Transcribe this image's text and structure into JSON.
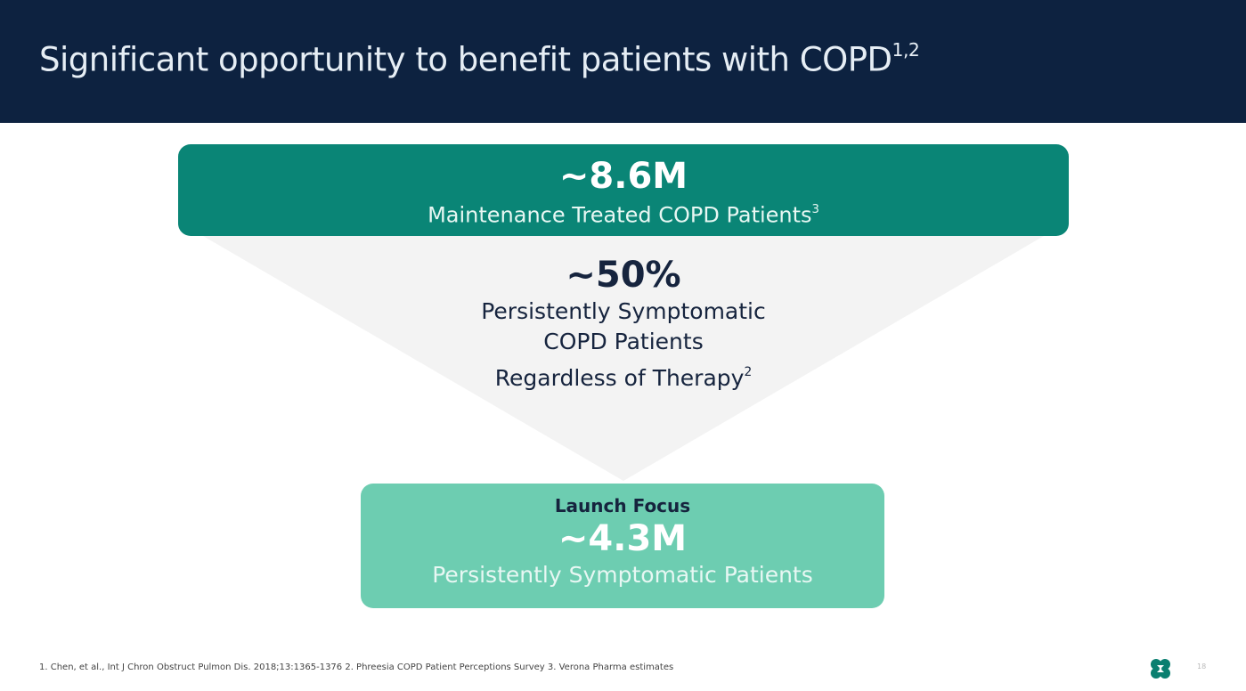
{
  "header": {
    "title": "Significant opportunity to benefit patients with COPD",
    "title_sup": "1,2"
  },
  "funnel": {
    "top": {
      "value": "~8.6M",
      "label": "Maintenance Treated COPD Patients",
      "label_sup": "3"
    },
    "middle": {
      "value": "~50%",
      "line1": "Persistently Symptomatic",
      "line2": "COPD Patients",
      "line3": "Regardless of Therapy",
      "line3_sup": "2"
    },
    "bottom": {
      "heading": "Launch Focus",
      "value": "~4.3M",
      "label": "Persistently Symptomatic Patients"
    }
  },
  "footer": {
    "references": "1. Chen, et al., Int J Chron Obstruct Pulmon Dis. 2018;13:1365-1376 2. Phreesia COPD Patient Perceptions Survey 3. Verona Pharma estimates",
    "page_number": "18"
  },
  "colors": {
    "header": "#0d2240",
    "top_box": "#0a8576",
    "bottom_box": "#6dcdb1",
    "funnel": "#f4f4f4"
  }
}
